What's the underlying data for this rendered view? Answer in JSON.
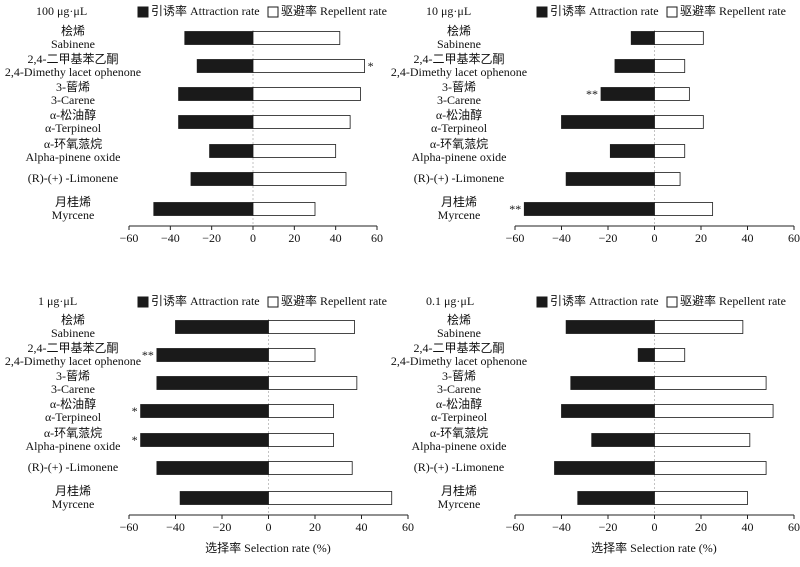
{
  "legend": {
    "attraction_label": "引诱率 Attraction rate",
    "repellent_label": "驱避率 Repellent rate"
  },
  "xlabel": "选择率 Selection rate (%)",
  "categories": [
    {
      "zh": "桧烯",
      "en": "Sabinene"
    },
    {
      "zh": "2,4-二甲基苯乙酮",
      "en": "2,4-Dimethy lacet ophenone"
    },
    {
      "zh": "3-蒈烯",
      "en": "3-Carene"
    },
    {
      "zh": "α-松油醇",
      "en": "α-Terpineol"
    },
    {
      "zh": "α-环氧蒎烷",
      "en": "Alpha-pinene oxide"
    },
    {
      "zh": "",
      "en": "(R)-(+) -Limonene"
    },
    {
      "zh": "月桂烯",
      "en": "Myrcene"
    }
  ],
  "colors": {
    "attraction": "#1a1a1a",
    "repellent": "#ffffff",
    "zero_line": "#b5b5b5"
  },
  "chart_data": [
    {
      "type": "bar",
      "orientation": "horizontal",
      "title": "100 μg·μL",
      "xlim": [
        -60,
        60
      ],
      "xticks": [
        -60,
        -40,
        -20,
        0,
        20,
        40,
        60
      ],
      "series": [
        {
          "name": "引诱率 Attraction rate",
          "values": [
            -33,
            -27,
            -36,
            -36,
            -21,
            -30,
            -48
          ]
        },
        {
          "name": "驱避率 Repellent rate",
          "values": [
            42,
            54,
            52,
            47,
            40,
            45,
            30
          ]
        }
      ],
      "significance": [
        "",
        "*",
        "",
        "",
        "",
        "",
        ""
      ]
    },
    {
      "type": "bar",
      "orientation": "horizontal",
      "title": "10 μg·μL",
      "xlim": [
        -60,
        60
      ],
      "xticks": [
        -60,
        -40,
        -20,
        0,
        20,
        40,
        60
      ],
      "series": [
        {
          "name": "引诱率 Attraction rate",
          "values": [
            -10,
            -17,
            -23,
            -40,
            -19,
            -38,
            -56
          ]
        },
        {
          "name": "驱避率 Repellent rate",
          "values": [
            21,
            13,
            15,
            21,
            13,
            11,
            25
          ]
        }
      ],
      "significance": [
        "",
        "",
        "**",
        "",
        "",
        "",
        "**"
      ]
    },
    {
      "type": "bar",
      "orientation": "horizontal",
      "title": "1 μg·μL",
      "xlim": [
        -60,
        60
      ],
      "xticks": [
        -60,
        -40,
        -20,
        0,
        20,
        40,
        60
      ],
      "series": [
        {
          "name": "引诱率 Attraction rate",
          "values": [
            -40,
            -48,
            -48,
            -55,
            -55,
            -48,
            -38
          ]
        },
        {
          "name": "驱避率 Repellent rate",
          "values": [
            37,
            20,
            38,
            28,
            28,
            36,
            53
          ]
        }
      ],
      "significance": [
        "",
        "**",
        "",
        "*",
        "*",
        "",
        ""
      ]
    },
    {
      "type": "bar",
      "orientation": "horizontal",
      "title": "0.1 μg·μL",
      "xlim": [
        -60,
        60
      ],
      "xticks": [
        -60,
        -40,
        -20,
        0,
        20,
        40,
        60
      ],
      "series": [
        {
          "name": "引诱率 Attraction rate",
          "values": [
            -38,
            -7,
            -36,
            -40,
            -27,
            -43,
            -33
          ]
        },
        {
          "name": "驱避率 Repellent rate",
          "values": [
            38,
            13,
            48,
            51,
            41,
            48,
            40
          ]
        }
      ],
      "significance": [
        "",
        "",
        "",
        "",
        "",
        "",
        ""
      ]
    }
  ]
}
